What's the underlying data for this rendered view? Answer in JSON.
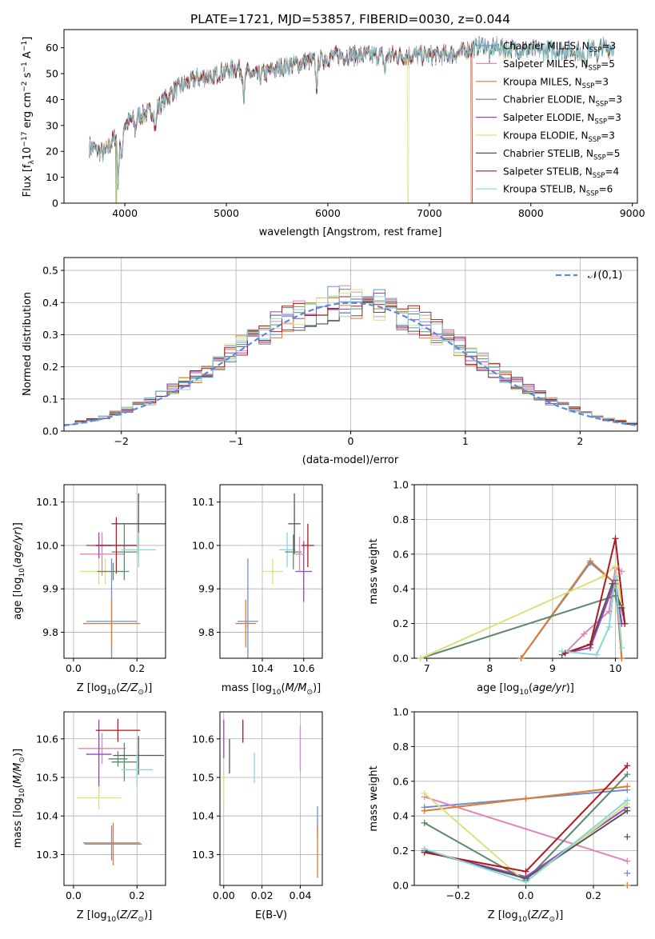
{
  "figure": {
    "title": "PLATE=1721, MJD=53857, FIBERID=0030, z=0.044"
  },
  "colors": {
    "Chabrier MILES": "#6a8fd8",
    "Salpeter MILES": "#e085b8",
    "Kroupa MILES": "#e07a2c",
    "Chabrier ELODIE": "#5a8a6a",
    "Salpeter ELODIE": "#9a44c2",
    "Kroupa ELODIE": "#d8e27a",
    "Chabrier STELIB": "#555555",
    "Salpeter STELIB": "#b0171f",
    "Kroupa STELIB": "#86d6dc",
    "gaussian": "#5a8ae0"
  },
  "chart_data": [
    {
      "id": "spectrum",
      "type": "line",
      "xlabel": "wavelength [Angstrom, rest frame]",
      "ylabel": "Flux [f_λ 10^-17 erg cm^-2 s^-1 A^-1]",
      "xlim": [
        3400,
        9050
      ],
      "ylim": [
        0,
        67
      ],
      "xticks": [
        4000,
        5000,
        6000,
        7000,
        8000,
        9000
      ],
      "yticks": [
        0,
        10,
        20,
        30,
        40,
        50,
        60
      ],
      "grid": false,
      "legend_position": "upper-right",
      "legend": [
        {
          "model": "Chabrier MILES",
          "imf": "Chabrier",
          "lib": "MILES",
          "nssp": 3
        },
        {
          "model": "Salpeter MILES",
          "imf": "Salpeter",
          "lib": "MILES",
          "nssp": 5
        },
        {
          "model": "Kroupa MILES",
          "imf": "Kroupa",
          "lib": "MILES",
          "nssp": 3
        },
        {
          "model": "Chabrier ELODIE",
          "imf": "Chabrier",
          "lib": "ELODIE",
          "nssp": 3
        },
        {
          "model": "Salpeter ELODIE",
          "imf": "Salpeter",
          "lib": "ELODIE",
          "nssp": 3
        },
        {
          "model": "Kroupa ELODIE",
          "imf": "Kroupa",
          "lib": "ELODIE",
          "nssp": 3
        },
        {
          "model": "Chabrier STELIB",
          "imf": "Chabrier",
          "lib": "STELIB",
          "nssp": 5
        },
        {
          "model": "Salpeter STELIB",
          "imf": "Salpeter",
          "lib": "STELIB",
          "nssp": 4
        },
        {
          "model": "Kroupa STELIB",
          "imf": "Kroupa",
          "lib": "STELIB",
          "nssp": 6
        }
      ],
      "continuum": [
        [
          3650,
          22
        ],
        [
          3800,
          19
        ],
        [
          3950,
          29
        ],
        [
          4100,
          33
        ],
        [
          4300,
          36
        ],
        [
          4500,
          44
        ],
        [
          4700,
          48
        ],
        [
          4900,
          50
        ],
        [
          5100,
          52
        ],
        [
          5300,
          49
        ],
        [
          5500,
          52
        ],
        [
          5700,
          54
        ],
        [
          5900,
          55
        ],
        [
          6100,
          57
        ],
        [
          6300,
          57
        ],
        [
          6500,
          57
        ],
        [
          6700,
          57
        ],
        [
          6900,
          57
        ],
        [
          7100,
          57
        ],
        [
          7300,
          58
        ],
        [
          7500,
          61
        ],
        [
          7700,
          60
        ],
        [
          7900,
          59
        ],
        [
          8100,
          59
        ],
        [
          8300,
          59
        ],
        [
          8500,
          59
        ],
        [
          8700,
          60
        ],
        [
          8800,
          60
        ]
      ],
      "dips": [
        [
          3934,
          20
        ],
        [
          3968,
          15
        ],
        [
          4102,
          5
        ],
        [
          4300,
          8
        ],
        [
          4861,
          5
        ],
        [
          5175,
          10
        ],
        [
          5890,
          10
        ],
        [
          6563,
          6
        ],
        [
          7600,
          5
        ],
        [
          8498,
          4
        ],
        [
          8542,
          5
        ],
        [
          8662,
          5
        ]
      ],
      "cutoffs": [
        {
          "model": "Kroupa ELODIE",
          "at": [
            3920,
            6790
          ]
        },
        {
          "model": "Kroupa MILES",
          "at": [
            7410
          ]
        },
        {
          "model": "Salpeter STELIB",
          "at": [
            7420
          ]
        },
        {
          "model": "Chabrier ELODIE",
          "at": [
            3915
          ]
        }
      ]
    },
    {
      "id": "residuals",
      "type": "histogram",
      "xlabel": "(data-model)/error",
      "ylabel": "Normed distribution",
      "xlim": [
        -2.5,
        2.5
      ],
      "ylim": [
        0,
        0.54
      ],
      "xticks": [
        -2,
        -1,
        0,
        1,
        2
      ],
      "yticks": [
        0.0,
        0.1,
        0.2,
        0.3,
        0.4,
        0.5
      ],
      "grid": true,
      "bin_width": 0.1,
      "legend_position": "upper-right",
      "reference_curve": {
        "label": "𝒩(0,1)",
        "mean": 0,
        "sigma": 1
      }
    },
    {
      "id": "age_vs_Z",
      "type": "errorbar",
      "xlabel": "Z [log10(Z/Z⊙)]",
      "ylabel": "age  [log10(age/yr)]",
      "xlim": [
        -0.03,
        0.29
      ],
      "ylim": [
        9.74,
        10.14
      ],
      "xticks": [
        0.0,
        0.2
      ],
      "yticks": [
        9.8,
        9.9,
        10.0,
        10.1
      ],
      "grid": true,
      "points": [
        {
          "model": "Chabrier MILES",
          "x": 0.12,
          "xerr": 0.08,
          "y": 9.825,
          "yerr": 0.145
        },
        {
          "model": "Salpeter MILES",
          "x": 0.09,
          "xerr": 0.07,
          "y": 9.98,
          "yerr": 0.05
        },
        {
          "model": "Kroupa MILES",
          "x": 0.12,
          "xerr": 0.09,
          "y": 9.82,
          "yerr": 0.055
        },
        {
          "model": "Chabrier ELODIE",
          "x": 0.16,
          "xerr": 0.04,
          "y": 9.985,
          "yerr": 0.065
        },
        {
          "model": "Salpeter ELODIE",
          "x": 0.08,
          "xerr": 0.04,
          "y": 10.0,
          "yerr": 0.03
        },
        {
          "model": "Kroupa ELODIE",
          "x": 0.08,
          "xerr": 0.06,
          "y": 9.94,
          "yerr": 0.03
        },
        {
          "model": "Chabrier STELIB",
          "x": 0.205,
          "xerr": 0.085,
          "y": 10.05,
          "yerr": 0.07
        },
        {
          "model": "Salpeter STELIB",
          "x": 0.135,
          "xerr": 0.065,
          "y": 10.0,
          "yerr": 0.065
        },
        {
          "model": "Kroupa STELIB",
          "x": 0.205,
          "xerr": 0.055,
          "y": 9.99,
          "yerr": 0.04
        },
        {
          "model": "Kroupa ELODIE",
          "x": 0.1,
          "xerr": 0.06,
          "y": 9.94,
          "yerr": 0.03
        },
        {
          "model": "Chabrier ELODIE",
          "x": 0.125,
          "xerr": 0.05,
          "y": 9.94,
          "yerr": 0.02
        }
      ]
    },
    {
      "id": "age_vs_mass",
      "type": "errorbar",
      "xlabel": "mass [log10(M/M⊙)]",
      "ylabel": "",
      "xlim": [
        10.195,
        10.69
      ],
      "ylim": [
        9.74,
        10.14
      ],
      "xticks": [
        10.4,
        10.6
      ],
      "yticks": [
        9.8,
        9.9,
        10.0,
        10.1
      ],
      "grid": true,
      "points": [
        {
          "model": "Chabrier MILES",
          "x": 10.33,
          "xerr": 0.05,
          "y": 9.825,
          "yerr": 0.145
        },
        {
          "model": "Kroupa MILES",
          "x": 10.32,
          "xerr": 0.05,
          "y": 9.82,
          "yerr": 0.055
        },
        {
          "model": "Kroupa ELODIE",
          "x": 10.45,
          "xerr": 0.05,
          "y": 9.94,
          "yerr": 0.03
        },
        {
          "model": "Kroupa STELIB",
          "x": 10.52,
          "xerr": 0.04,
          "y": 9.99,
          "yerr": 0.04
        },
        {
          "model": "Chabrier STELIB",
          "x": 10.555,
          "xerr": 0.03,
          "y": 10.05,
          "yerr": 0.07
        },
        {
          "model": "Chabrier ELODIE",
          "x": 10.55,
          "xerr": 0.04,
          "y": 9.985,
          "yerr": 0.04
        },
        {
          "model": "Salpeter ELODIE",
          "x": 10.6,
          "xerr": 0.04,
          "y": 9.94,
          "yerr": 0.07
        },
        {
          "model": "Salpeter STELIB",
          "x": 10.62,
          "xerr": 0.03,
          "y": 10.0,
          "yerr": 0.05
        },
        {
          "model": "Salpeter MILES",
          "x": 10.58,
          "xerr": 0.02,
          "y": 9.98,
          "yerr": 0.04
        }
      ]
    },
    {
      "id": "weight_vs_age",
      "type": "line",
      "xlabel": "age  [log10(age/yr)]",
      "ylabel": "mass weight",
      "xlim": [
        6.8,
        10.35
      ],
      "ylim": [
        0,
        1.0
      ],
      "xticks": [
        7,
        8,
        9,
        10
      ],
      "yticks": [
        0.0,
        0.2,
        0.4,
        0.6,
        0.8,
        1.0
      ],
      "grid": true,
      "series": [
        {
          "model": "Chabrier MILES",
          "x": [
            8.5,
            9.6,
            10.0,
            10.1
          ],
          "y": [
            0.0,
            0.55,
            0.43,
            0.0
          ]
        },
        {
          "model": "Salpeter MILES",
          "x": [
            9.2,
            9.5,
            9.9,
            10.0,
            10.1
          ],
          "y": [
            0.03,
            0.14,
            0.27,
            0.52,
            0.5
          ]
        },
        {
          "model": "Kroupa MILES",
          "x": [
            8.5,
            9.6,
            10.0,
            10.1
          ],
          "y": [
            0.0,
            0.56,
            0.43,
            0.0
          ]
        },
        {
          "model": "Chabrier ELODIE",
          "x": [
            6.9,
            10.0,
            10.1
          ],
          "y": [
            0.0,
            0.36,
            0.2
          ]
        },
        {
          "model": "Salpeter ELODIE",
          "x": [
            9.2,
            9.6,
            10.0,
            10.1
          ],
          "y": [
            0.03,
            0.06,
            0.45,
            0.2
          ]
        },
        {
          "model": "Kroupa ELODIE",
          "x": [
            6.9,
            9.8,
            10.0,
            10.1
          ],
          "y": [
            0.0,
            0.47,
            0.53,
            0.3
          ]
        },
        {
          "model": "Chabrier STELIB",
          "x": [
            9.15,
            9.6,
            9.95,
            10.1,
            10.15
          ],
          "y": [
            0.02,
            0.08,
            0.43,
            0.29,
            0.2
          ]
        },
        {
          "model": "Salpeter STELIB",
          "x": [
            9.2,
            9.6,
            10.0,
            10.15
          ],
          "y": [
            0.03,
            0.08,
            0.69,
            0.2
          ]
        },
        {
          "model": "Kroupa STELIB",
          "x": [
            9.15,
            9.7,
            9.9,
            10.0,
            10.1
          ],
          "y": [
            0.04,
            0.02,
            0.18,
            0.47,
            0.06
          ]
        }
      ]
    },
    {
      "id": "mass_vs_Z",
      "type": "errorbar",
      "xlabel": "Z [log10(Z/Z⊙)]",
      "ylabel": "mass [log10(M/M⊙)]",
      "xlim": [
        -0.03,
        0.29
      ],
      "ylim": [
        10.22,
        10.67
      ],
      "xticks": [
        0.0,
        0.2
      ],
      "yticks": [
        10.3,
        10.4,
        10.5,
        10.6
      ],
      "grid": true,
      "points": [
        {
          "model": "Chabrier MILES",
          "x": 0.12,
          "xerr": 0.09,
          "y": 10.33,
          "yerr": 0.045
        },
        {
          "model": "Salpeter MILES",
          "x": 0.09,
          "xerr": 0.075,
          "y": 10.575,
          "yerr": 0.04
        },
        {
          "model": "Kroupa MILES",
          "x": 0.125,
          "xerr": 0.09,
          "y": 10.327,
          "yerr": 0.055
        },
        {
          "model": "Chabrier ELODIE",
          "x": 0.16,
          "xerr": 0.04,
          "y": 10.54,
          "yerr": 0.05
        },
        {
          "model": "Salpeter ELODIE",
          "x": 0.08,
          "xerr": 0.04,
          "y": 10.56,
          "yerr": 0.09
        },
        {
          "model": "Kroupa ELODIE",
          "x": 0.08,
          "xerr": 0.07,
          "y": 10.447,
          "yerr": 0.03
        },
        {
          "model": "Chabrier STELIB",
          "x": 0.205,
          "xerr": 0.08,
          "y": 10.557,
          "yerr": 0.05
        },
        {
          "model": "Salpeter STELIB",
          "x": 0.14,
          "xerr": 0.07,
          "y": 10.622,
          "yerr": 0.03
        },
        {
          "model": "Kroupa STELIB",
          "x": 0.2,
          "xerr": 0.05,
          "y": 10.52,
          "yerr": 0.04
        },
        {
          "model": "Chabrier ELODIE",
          "x": 0.14,
          "xerr": 0.03,
          "y": 10.548,
          "yerr": 0.02
        }
      ]
    },
    {
      "id": "mass_vs_EBV",
      "type": "errorbar",
      "xlabel": "E(B-V)",
      "ylabel": "",
      "xlim": [
        -0.002,
        0.0515
      ],
      "ylim": [
        10.22,
        10.67
      ],
      "xticks": [
        0.0,
        0.02,
        0.04
      ],
      "yticks": [
        10.3,
        10.4,
        10.5,
        10.6
      ],
      "grid": true,
      "points": [
        {
          "model": "Salpeter ELODIE",
          "x": 0.0,
          "y": 10.6,
          "yerr": 0.05
        },
        {
          "model": "Kroupa ELODIE",
          "x": 0.0,
          "y": 10.47,
          "yerr": 0.035
        },
        {
          "model": "Chabrier STELIB",
          "x": 0.003,
          "y": 10.555,
          "yerr": 0.045
        },
        {
          "model": "Salpeter STELIB",
          "x": 0.01,
          "y": 10.62,
          "yerr": 0.03
        },
        {
          "model": "Kroupa STELIB",
          "x": 0.016,
          "y": 10.525,
          "yerr": 0.04
        },
        {
          "model": "Salpeter MILES",
          "x": 0.04,
          "y": 10.575,
          "yerr": 0.06
        },
        {
          "model": "Chabrier MILES",
          "x": 0.049,
          "y": 10.385,
          "yerr": 0.04
        },
        {
          "model": "Kroupa MILES",
          "x": 0.049,
          "y": 10.31,
          "yerr": 0.07
        }
      ]
    },
    {
      "id": "weight_vs_Z",
      "type": "line",
      "xlabel": "Z [log10(Z/Z⊙)]",
      "ylabel": "mass weight",
      "xlim": [
        -0.33,
        0.33
      ],
      "ylim": [
        0,
        1.0
      ],
      "xticks": [
        -0.2,
        0.0,
        0.2
      ],
      "yticks": [
        0.0,
        0.2,
        0.4,
        0.6,
        0.8,
        1.0
      ],
      "grid": true,
      "series": [
        {
          "model": "Chabrier MILES",
          "x": [
            -0.3,
            0.0,
            0.3
          ],
          "y": [
            0.45,
            0.5,
            0.55
          ]
        },
        {
          "model": "Salpeter MILES",
          "x": [
            -0.3,
            0.3
          ],
          "y": [
            0.51,
            0.14
          ]
        },
        {
          "model": "Kroupa MILES",
          "x": [
            -0.3,
            0.0,
            0.3
          ],
          "y": [
            0.43,
            0.5,
            0.57
          ]
        },
        {
          "model": "Chabrier ELODIE",
          "x": [
            -0.3,
            0.0,
            0.3
          ],
          "y": [
            0.36,
            0.03,
            0.64
          ]
        },
        {
          "model": "Salpeter ELODIE",
          "x": [
            -0.3,
            0.0,
            0.3
          ],
          "y": [
            0.2,
            0.05,
            0.45
          ]
        },
        {
          "model": "Kroupa ELODIE",
          "x": [
            -0.3,
            0.0,
            0.3
          ],
          "y": [
            0.53,
            0.02,
            0.47
          ]
        },
        {
          "model": "Chabrier STELIB",
          "x": [
            -0.3,
            0.0,
            0.3
          ],
          "y": [
            0.2,
            0.04,
            0.43
          ]
        },
        {
          "model": "Salpeter STELIB",
          "x": [
            -0.3,
            0.0,
            0.3
          ],
          "y": [
            0.19,
            0.08,
            0.69
          ]
        },
        {
          "model": "Kroupa STELIB",
          "x": [
            -0.3,
            0.0,
            0.3
          ],
          "y": [
            0.21,
            0.02,
            0.49
          ]
        }
      ],
      "extra_markers": [
        {
          "model": "Kroupa MILES",
          "x": 0.3,
          "y": 0.0
        },
        {
          "model": "Chabrier MILES",
          "x": 0.3,
          "y": 0.07
        },
        {
          "model": "Chabrier STELIB",
          "x": 0.3,
          "y": 0.28
        }
      ]
    }
  ]
}
